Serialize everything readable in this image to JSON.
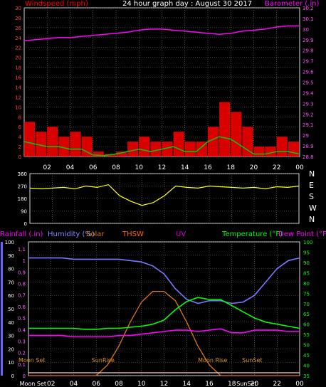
{
  "title": "24 hour graph day : August 30 2017",
  "x_tick_labels": [
    "02",
    "04",
    "06",
    "08",
    "10",
    "12",
    "14",
    "16",
    "18",
    "20",
    "22",
    "00"
  ],
  "colors": {
    "frame": "#d8d8d8",
    "grid": "#7a7a7a",
    "wind": "#ff0000",
    "gust": "#00cc00",
    "barometer": "#ff00ff",
    "direction": "#ffff00",
    "humidity": "#7777ff",
    "temperature": "#00ff00",
    "dewpoint": "#ff00ff",
    "solar": "#dd7711",
    "rain": "#8888ff",
    "thsw": "#ff6600",
    "uv": "#cc00cc",
    "moon": "#ffcccc"
  },
  "chart_data": [
    {
      "type": "line",
      "panel": "wind-barometer",
      "title": "24 hour graph day : August 30 2017",
      "left_axis_label": "Windspeed (mph)",
      "right_axis_label": "Barometer (.in)",
      "left_ticks": [
        "0",
        "2",
        "4",
        "6",
        "8",
        "10",
        "12",
        "14",
        "16",
        "18",
        "20",
        "22",
        "24",
        "26",
        "28",
        "30"
      ],
      "right_ticks": [
        "28.8",
        "28.9",
        "29",
        "29.1",
        "29.2",
        "29.3",
        "29.4",
        "29.5",
        "29.6",
        "29.7",
        "29.8",
        "29.9",
        "30",
        "30.1",
        "30.2"
      ],
      "ylim_left": [
        0,
        30
      ],
      "ylim_right": [
        28.8,
        30.2
      ],
      "x": [
        0,
        1,
        2,
        3,
        4,
        5,
        6,
        7,
        8,
        9,
        10,
        11,
        12,
        13,
        14,
        15,
        16,
        17,
        18,
        19,
        20,
        21,
        22,
        23,
        24
      ],
      "series": [
        {
          "key": "wind",
          "values": [
            7,
            5,
            6,
            4,
            5,
            4,
            1,
            0.5,
            1,
            3,
            4,
            3,
            3,
            5,
            3,
            3,
            6,
            11,
            9,
            6,
            2,
            2,
            4,
            3,
            2
          ]
        },
        {
          "key": "gust",
          "values": [
            3,
            2.5,
            2,
            2,
            1.5,
            1.5,
            0.3,
            0.2,
            0.5,
            1,
            1.5,
            1,
            1.5,
            2,
            1,
            1,
            3,
            4,
            3.5,
            2,
            0.5,
            0.5,
            1,
            1,
            0.5
          ]
        },
        {
          "key": "barometer",
          "values": [
            29.89,
            29.9,
            29.91,
            29.92,
            29.92,
            29.93,
            29.94,
            29.95,
            29.96,
            29.97,
            29.99,
            30.0,
            30.0,
            29.99,
            29.98,
            29.97,
            29.96,
            29.95,
            29.96,
            29.98,
            29.99,
            30.0,
            30.02,
            30.03,
            30.03
          ]
        }
      ]
    },
    {
      "type": "line",
      "panel": "wind-direction",
      "left_ticks": [
        "0",
        "90",
        "180",
        "270",
        "360"
      ],
      "right_ticks": [
        "N",
        "W",
        "S",
        "E",
        "N"
      ],
      "ylim": [
        0,
        360
      ],
      "x": [
        0,
        1,
        2,
        3,
        4,
        5,
        6,
        7,
        8,
        9,
        10,
        11,
        12,
        13,
        14,
        15,
        16,
        17,
        18,
        19,
        20,
        21,
        22,
        23,
        24
      ],
      "series": [
        {
          "key": "direction",
          "values": [
            255,
            250,
            255,
            260,
            250,
            270,
            260,
            280,
            200,
            160,
            130,
            150,
            200,
            270,
            260,
            255,
            270,
            265,
            260,
            255,
            260,
            250,
            265,
            260,
            270
          ]
        }
      ]
    },
    {
      "type": "line",
      "panel": "temp-humidity",
      "labels": {
        "rain": "Rainfall (.in)",
        "humidity": "Humidity (%)",
        "solar": "Solar",
        "thsw": "THSW",
        "uv": "UV",
        "temperature": "Temperature (°F)",
        "dewpoint": "Dew Point (°F)"
      },
      "left_ticks_pct": [
        "0",
        "10",
        "20",
        "30",
        "40",
        "50",
        "60",
        "70",
        "80",
        "90",
        "100"
      ],
      "left_ticks_rain": [
        "0",
        "0.1",
        "0.2",
        "0.3",
        "0.4",
        "0.5",
        "0.6",
        "0.7",
        "0.8",
        "0.9",
        "1",
        "1.1"
      ],
      "right_ticks": [
        "35",
        "40",
        "45",
        "50",
        "55",
        "60",
        "65",
        "70",
        "75",
        "80",
        "85",
        "90",
        "95",
        "100"
      ],
      "ylim_left": [
        0,
        100
      ],
      "ylim_right": [
        35,
        100
      ],
      "x": [
        0,
        1,
        2,
        3,
        4,
        5,
        6,
        7,
        8,
        9,
        10,
        11,
        12,
        13,
        14,
        15,
        16,
        17,
        18,
        19,
        20,
        21,
        22,
        23,
        24
      ],
      "series": [
        {
          "key": "humidity",
          "values": [
            88,
            88,
            88,
            88,
            87,
            87,
            87,
            87,
            87,
            86,
            85,
            82,
            76,
            65,
            57,
            54,
            56,
            56,
            54,
            55,
            60,
            70,
            80,
            86,
            88
          ]
        },
        {
          "key": "temperature",
          "values": [
            58,
            58,
            58,
            58,
            58,
            57.5,
            57.5,
            58,
            58,
            58.5,
            59,
            60,
            62,
            67,
            71,
            73,
            72,
            72,
            69,
            66,
            63,
            61,
            60,
            59,
            58
          ]
        },
        {
          "key": "solar",
          "values": [
            0,
            0,
            0,
            0,
            0,
            0,
            0,
            8,
            22,
            40,
            55,
            63,
            63,
            56,
            40,
            22,
            8,
            0,
            0,
            0,
            0,
            0,
            0,
            0,
            0
          ]
        },
        {
          "key": "dewpoint",
          "values": [
            30,
            30,
            30,
            30,
            29,
            29,
            29,
            29,
            30,
            30,
            31,
            32,
            33,
            34,
            34,
            33,
            34,
            35,
            32,
            32,
            34,
            34,
            34,
            33,
            33
          ]
        }
      ],
      "annotations": [
        {
          "text": "Moon Set",
          "x": 0.3,
          "row": "top"
        },
        {
          "text": "SunRise",
          "x": 6.6,
          "row": "top"
        },
        {
          "text": "Moon Rise",
          "x": 16.3,
          "row": "top"
        },
        {
          "text": "SunSet",
          "x": 19.8,
          "row": "top"
        },
        {
          "text": "Moon Set",
          "x": 0.4,
          "row": "bottom"
        },
        {
          "text": "SunSet",
          "x": 19.3,
          "row": "bottom"
        }
      ]
    }
  ]
}
